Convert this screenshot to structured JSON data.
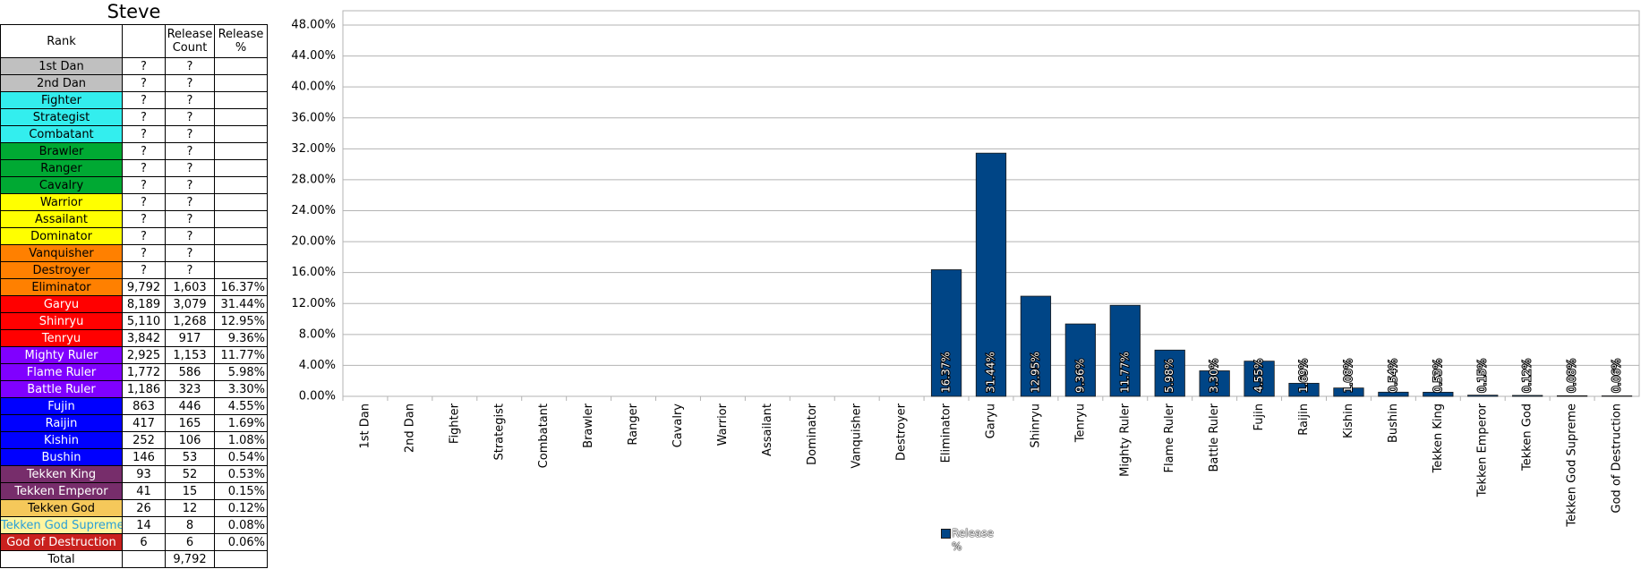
{
  "table": {
    "title": "Steve",
    "header": [
      "Rank",
      null,
      "Release Count",
      "Release %"
    ],
    "rows": [
      [
        "1st Dan",
        "?",
        "?",
        null
      ],
      [
        "2nd Dan",
        "?",
        "?",
        null
      ],
      [
        "Fighter",
        "?",
        "?",
        null
      ],
      [
        "Strategist",
        "?",
        "?",
        null
      ],
      [
        "Combatant",
        "?",
        "?",
        null
      ],
      [
        "Brawler",
        "?",
        "?",
        null
      ],
      [
        "Ranger",
        "?",
        "?",
        null
      ],
      [
        "Cavalry",
        "?",
        "?",
        null
      ],
      [
        "Warrior",
        "?",
        "?",
        null
      ],
      [
        "Assailant",
        "?",
        "?",
        null
      ],
      [
        "Dominator",
        "?",
        "?",
        null
      ],
      [
        "Vanquisher",
        "?",
        "?",
        null
      ],
      [
        "Destroyer",
        "?",
        "?",
        null
      ],
      [
        "Eliminator",
        "9,792",
        "1,603",
        "16.37%"
      ],
      [
        "Garyu",
        "8,189",
        "3,079",
        "31.44%"
      ],
      [
        "Shinryu",
        "5,110",
        "1,268",
        "12.95%"
      ],
      [
        "Tenryu",
        "3,842",
        "917",
        "9.36%"
      ],
      [
        "Mighty Ruler",
        "2,925",
        "1,153",
        "11.77%"
      ],
      [
        "Flame Ruler",
        "1,772",
        "586",
        "5.98%"
      ],
      [
        "Battle Ruler",
        "1,186",
        "323",
        "3.30%"
      ],
      [
        "Fujin",
        "863",
        "446",
        "4.55%"
      ],
      [
        "Raijin",
        "417",
        "165",
        "1.69%"
      ],
      [
        "Kishin",
        "252",
        "106",
        "1.08%"
      ],
      [
        "Bushin",
        "146",
        "53",
        "0.54%"
      ],
      [
        "Tekken King",
        "93",
        "52",
        "0.53%"
      ],
      [
        "Tekken Emperor",
        "41",
        "15",
        "0.15%"
      ],
      [
        "Tekken God",
        "26",
        "12",
        "0.12%"
      ],
      [
        "Tekken God Supreme",
        "14",
        "8",
        "0.08%"
      ],
      [
        "God of Destruction",
        "6",
        "6",
        "0.06%"
      ],
      [
        "Total",
        null,
        "9,792",
        null
      ]
    ],
    "row_colors": [
      "#c0c0c0",
      "#c0c0c0",
      "#33eeee",
      "#33eeee",
      "#33eeee",
      "#00a933",
      "#00a933",
      "#00a933",
      "#ffff00",
      "#ffff00",
      "#ffff00",
      "#ff8000",
      "#ff8000",
      "#ff8000",
      "#ff0000",
      "#ff0000",
      "#ff0000",
      "#8000ff",
      "#8000ff",
      "#8000ff",
      "#0000ff",
      "#0000ff",
      "#0000ff",
      "#0000ff",
      "#772d6b",
      "#772d6b",
      "#f5c85a",
      "#fff5a0",
      "#c9211e",
      "#ffffff"
    ],
    "row_text_colors": [
      "#000",
      "#000",
      "#000",
      "#000",
      "#000",
      "#000",
      "#000",
      "#000",
      "#000",
      "#000",
      "#000",
      "#000",
      "#000",
      "#000",
      "#fff",
      "#fff",
      "#fff",
      "#fff",
      "#fff",
      "#fff",
      "#fff",
      "#fff",
      "#fff",
      "#fff",
      "#fff",
      "#fff",
      "#000",
      "#2a9fd6",
      "#fff",
      "#000"
    ]
  },
  "chart_data": {
    "type": "bar",
    "categories": [
      "1st Dan",
      "2nd Dan",
      "Fighter",
      "Strategist",
      "Combatant",
      "Brawler",
      "Ranger",
      "Cavalry",
      "Warrior",
      "Assailant",
      "Dominator",
      "Vanquisher",
      "Destroyer",
      "Eliminator",
      "Garyu",
      "Shinryu",
      "Tenryu",
      "Mighty Ruler",
      "Flame Ruler",
      "Battle Ruler",
      "Fujin",
      "Raijin",
      "Kishin",
      "Bushin",
      "Tekken King",
      "Tekken Emperor",
      "Tekken God",
      "Tekken God Supreme",
      "God of Destruction"
    ],
    "series": [
      {
        "name": "Release %",
        "color": "#004586",
        "values": [
          null,
          null,
          null,
          null,
          null,
          null,
          null,
          null,
          null,
          null,
          null,
          null,
          null,
          16.37,
          31.44,
          12.95,
          9.36,
          11.77,
          5.98,
          3.3,
          4.55,
          1.69,
          1.08,
          0.54,
          0.53,
          0.15,
          0.12,
          0.08,
          0.06
        ],
        "value_labels": [
          null,
          null,
          null,
          null,
          null,
          null,
          null,
          null,
          null,
          null,
          null,
          null,
          null,
          "16.37%",
          "31.44%",
          "12.95%",
          "9.36%",
          "11.77%",
          "5.98%",
          "3.30%",
          "4.55%",
          "1.69%",
          "1.08%",
          "0.54%",
          "0.53%",
          "0.15%",
          "0.12%",
          "0.08%",
          "0.06%"
        ]
      }
    ],
    "ylim": [
      0,
      48
    ],
    "yticks": [
      {
        "value": 0,
        "label": "0.00%"
      },
      {
        "value": 4,
        "label": "4.00%"
      },
      {
        "value": 8,
        "label": "8.00%"
      },
      {
        "value": 12,
        "label": "12.00%"
      },
      {
        "value": 16,
        "label": "16.00%"
      },
      {
        "value": 20,
        "label": "20.00%"
      },
      {
        "value": 24,
        "label": "24.00%"
      },
      {
        "value": 28,
        "label": "28.00%"
      },
      {
        "value": 32,
        "label": "32.00%"
      },
      {
        "value": 36,
        "label": "36.00%"
      },
      {
        "value": 40,
        "label": "40.00%"
      },
      {
        "value": 44,
        "label": "44.00%"
      },
      {
        "value": 48,
        "label": "48.00%"
      }
    ],
    "grid": true,
    "legend": "bottom"
  }
}
